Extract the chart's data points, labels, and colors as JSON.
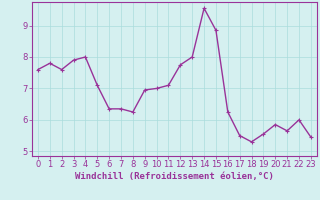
{
  "x": [
    0,
    1,
    2,
    3,
    4,
    5,
    6,
    7,
    8,
    9,
    10,
    11,
    12,
    13,
    14,
    15,
    16,
    17,
    18,
    19,
    20,
    21,
    22,
    23
  ],
  "y": [
    7.6,
    7.8,
    7.6,
    7.9,
    8.0,
    7.1,
    6.35,
    6.35,
    6.25,
    6.95,
    7.0,
    7.1,
    7.75,
    8.0,
    9.55,
    8.85,
    6.25,
    5.5,
    5.3,
    5.55,
    5.85,
    5.65,
    6.0,
    5.45
  ],
  "line_color": "#993399",
  "marker": "+",
  "marker_size": 3,
  "bg_color": "#d5f0f0",
  "grid_color": "#aadddd",
  "xlabel": "Windchill (Refroidissement éolien,°C)",
  "ylabel": "",
  "ylim": [
    4.85,
    9.75
  ],
  "xlim": [
    -0.5,
    23.5
  ],
  "yticks": [
    5,
    6,
    7,
    8,
    9
  ],
  "xticks": [
    0,
    1,
    2,
    3,
    4,
    5,
    6,
    7,
    8,
    9,
    10,
    11,
    12,
    13,
    14,
    15,
    16,
    17,
    18,
    19,
    20,
    21,
    22,
    23
  ],
  "line_width": 1.0,
  "xlabel_fontsize": 6.5,
  "tick_fontsize": 6.0,
  "xlabel_color": "#993399",
  "tick_color": "#993399",
  "spine_color": "#993399"
}
